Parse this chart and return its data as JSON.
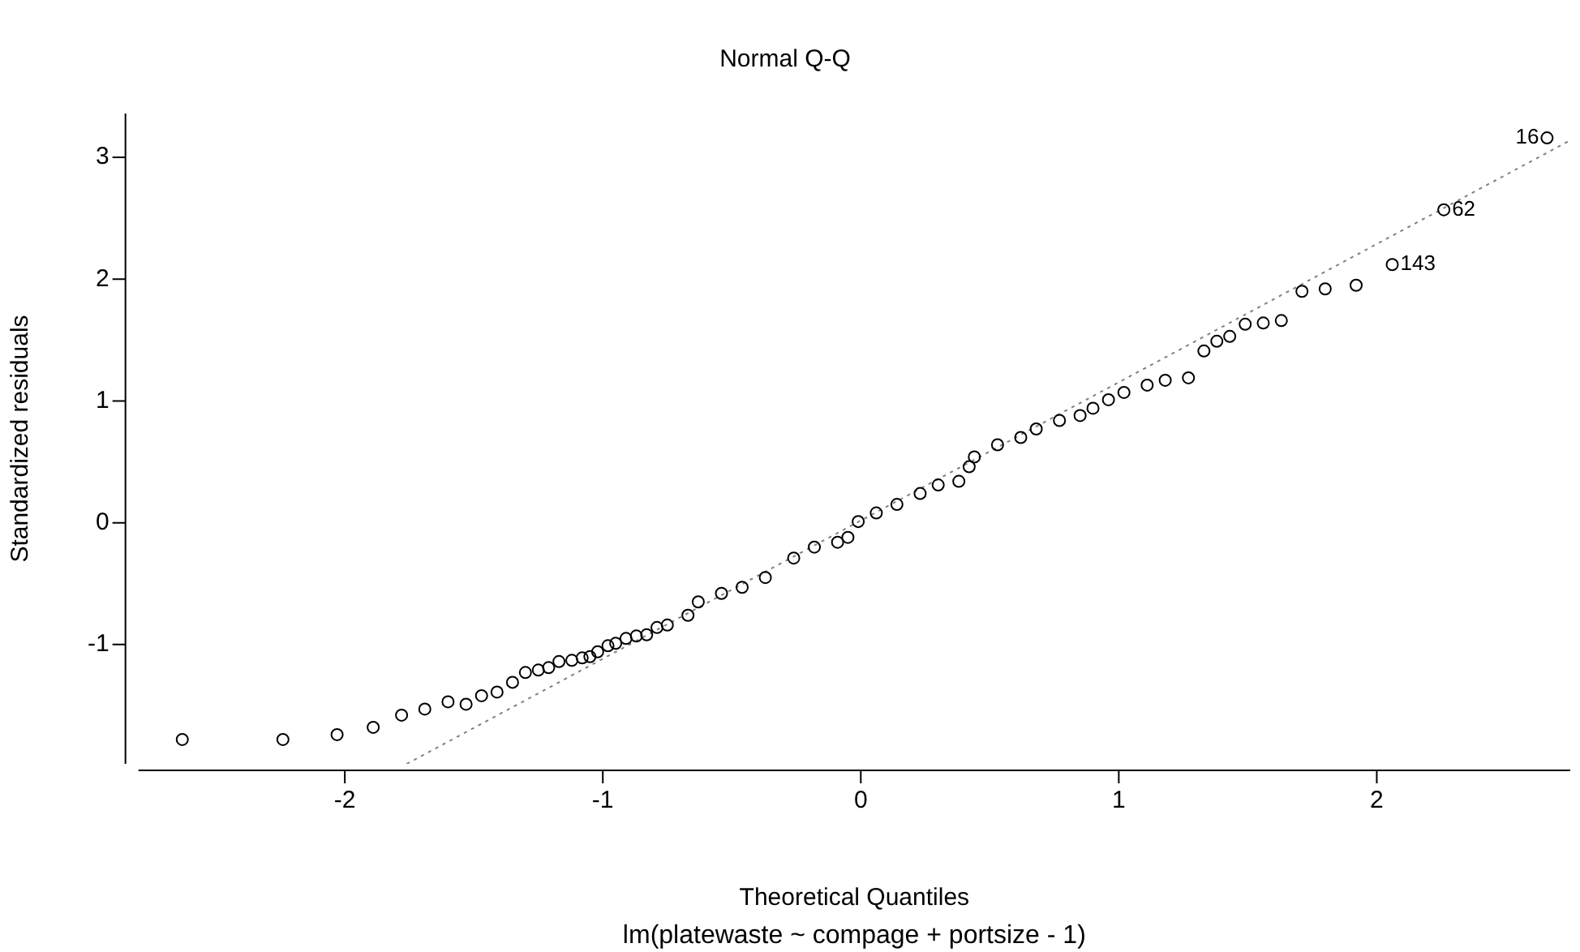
{
  "chart_data": {
    "type": "scatter",
    "title": "Normal Q-Q",
    "xlabel": "Theoretical Quantiles",
    "ylabel": "Standardized residuals",
    "xlim": [
      -2.8,
      2.75
    ],
    "ylim": [
      -1.98,
      3.36
    ],
    "xticks": [
      -2,
      -1,
      0,
      1,
      2
    ],
    "yticks": [
      -1,
      0,
      1,
      2,
      3
    ],
    "grid": false,
    "legend": false,
    "series": [
      {
        "color": "#000000",
        "marker": "circle",
        "x": [
          -2.63,
          -2.24,
          -2.03,
          -1.89,
          -1.78,
          -1.69,
          -1.6,
          -1.53,
          -1.47,
          -1.41,
          -1.35,
          -1.3,
          -1.25,
          -1.21,
          -1.17,
          -1.12,
          -1.08,
          -1.05,
          -1.02,
          -0.98,
          -0.95,
          -0.91,
          -0.87,
          -0.83,
          -0.79,
          -0.75,
          -0.67,
          -0.63,
          -0.54,
          -0.46,
          -0.37,
          -0.26,
          -0.18,
          -0.09,
          -0.05,
          -0.01,
          0.06,
          0.14,
          0.23,
          0.3,
          0.38,
          0.42,
          0.44,
          0.53,
          0.62,
          0.68,
          0.77,
          0.85,
          0.9,
          0.96,
          1.02,
          1.11,
          1.18,
          1.27,
          1.33,
          1.38,
          1.43,
          1.49,
          1.56,
          1.63,
          1.71,
          1.8,
          1.92,
          2.06,
          2.26,
          2.66
        ],
        "values": [
          -1.78,
          -1.78,
          -1.74,
          -1.68,
          -1.58,
          -1.53,
          -1.47,
          -1.49,
          -1.42,
          -1.39,
          -1.31,
          -1.23,
          -1.21,
          -1.19,
          -1.14,
          -1.13,
          -1.11,
          -1.1,
          -1.06,
          -1.01,
          -0.99,
          -0.95,
          -0.93,
          -0.92,
          -0.86,
          -0.84,
          -0.76,
          -0.65,
          -0.58,
          -0.53,
          -0.45,
          -0.29,
          -0.2,
          -0.16,
          -0.12,
          0.01,
          0.08,
          0.15,
          0.24,
          0.31,
          0.34,
          0.46,
          0.54,
          0.64,
          0.7,
          0.77,
          0.84,
          0.88,
          0.94,
          1.01,
          1.07,
          1.13,
          1.17,
          1.19,
          1.41,
          1.49,
          1.53,
          1.63,
          1.64,
          1.66,
          1.9,
          1.92,
          1.95,
          2.12,
          2.57,
          3.16
        ]
      },
      {
        "type": "line",
        "color": "#808080",
        "line_style": "dotted",
        "marker": "none",
        "x": [
          -1.76,
          2.75
        ],
        "values": [
          -1.98,
          3.14
        ]
      }
    ],
    "annotations": [
      {
        "text": "16",
        "x": 2.66,
        "y": 3.16
      },
      {
        "text": "62",
        "x": 2.26,
        "y": 2.57
      },
      {
        "text": "143",
        "x": 2.06,
        "y": 2.12
      },
      "lm(platewaste ~ compage + portsize - 1)"
    ]
  }
}
